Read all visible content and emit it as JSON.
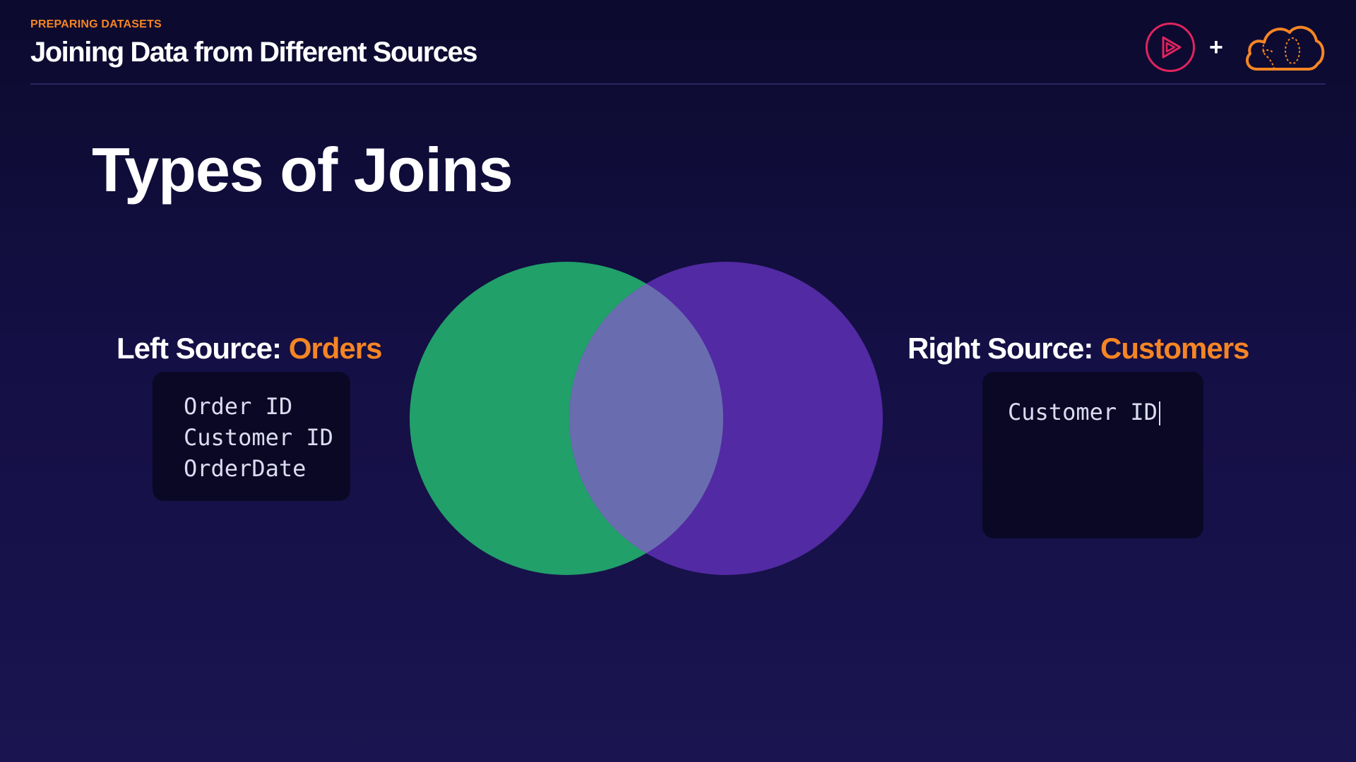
{
  "header": {
    "section": "PREPARING DATASETS",
    "title": "Joining Data from Different Sources",
    "plus": "+"
  },
  "slide": {
    "title": "Types of Joins"
  },
  "left_source": {
    "label": "Left Source:",
    "name": "Orders",
    "fields": [
      "Order ID",
      "Customer ID",
      "OrderDate"
    ]
  },
  "right_source": {
    "label": "Right Source:",
    "name": "Customers",
    "fields": [
      "Customer ID"
    ]
  },
  "icons": {
    "play_logo": "play-circle-icon",
    "cloud_logo": "cloud-icon"
  },
  "colors": {
    "accent": "#f58524",
    "left_circle": "#21a06a",
    "right_circle": "#522aa3",
    "intersection": "#6a6cb0",
    "play_logo": "#e0245e"
  }
}
